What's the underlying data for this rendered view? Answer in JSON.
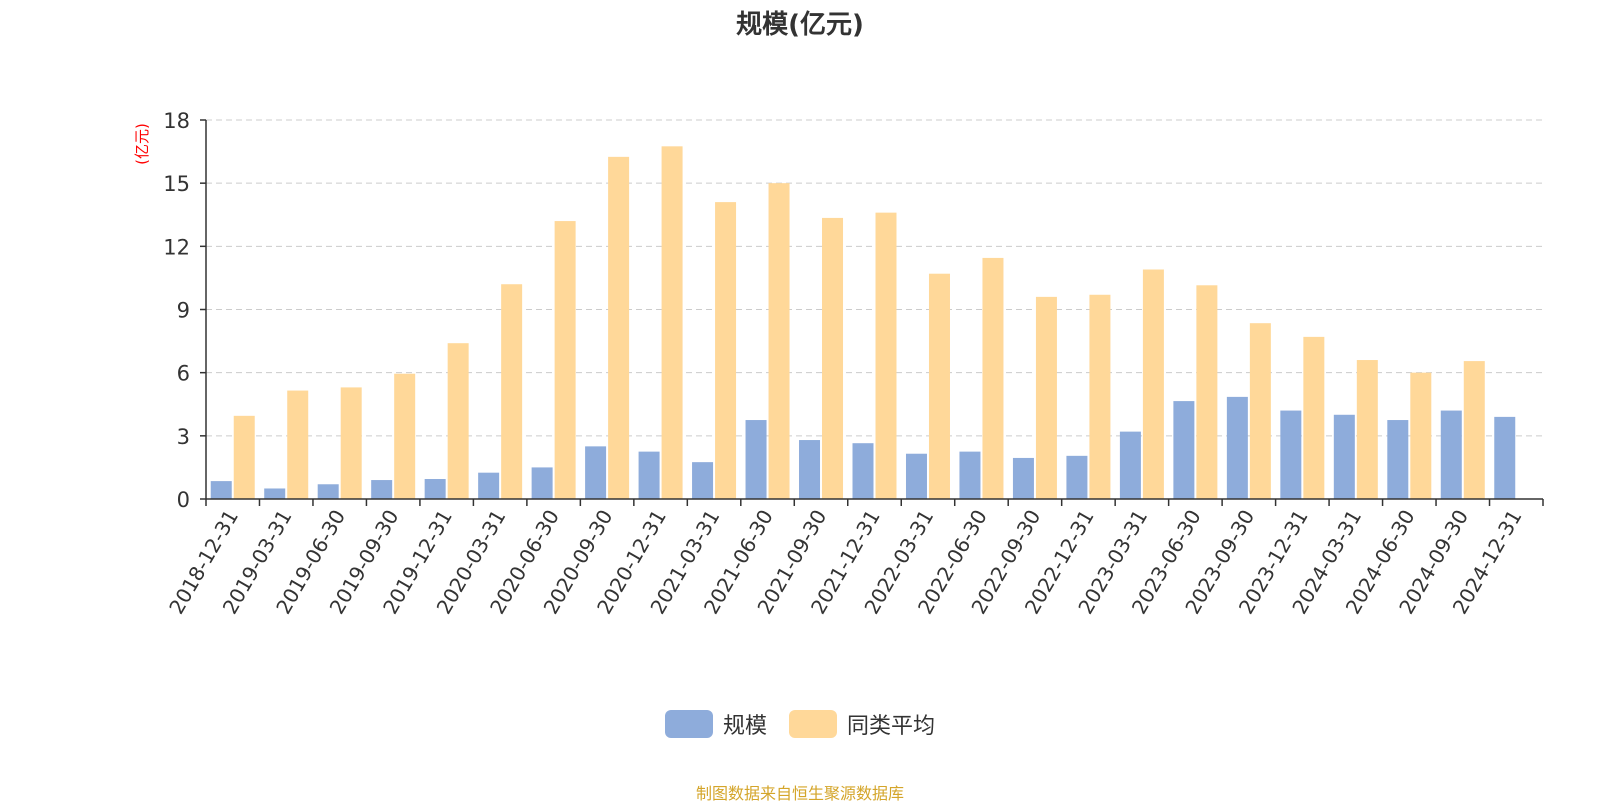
{
  "chart_data": {
    "type": "bar",
    "title": "规模(亿元)",
    "ylabel": "(亿元)",
    "xlabel": "",
    "ylim": [
      0,
      18
    ],
    "yticks": [
      "0",
      "3",
      "6",
      "9",
      "12",
      "15",
      "18"
    ],
    "grid": true,
    "legend_position": "bottom",
    "categories": [
      "2018-12-31",
      "2019-03-31",
      "2019-06-30",
      "2019-09-30",
      "2019-12-31",
      "2020-03-31",
      "2020-06-30",
      "2020-09-30",
      "2020-12-31",
      "2021-03-31",
      "2021-06-30",
      "2021-09-30",
      "2021-12-31",
      "2022-03-31",
      "2022-06-30",
      "2022-09-30",
      "2022-12-31",
      "2023-03-31",
      "2023-06-30",
      "2023-09-30",
      "2023-12-31",
      "2024-03-31",
      "2024-06-30",
      "2024-09-30",
      "2024-12-31"
    ],
    "series": [
      {
        "name": "规模",
        "color": "#8eacdb",
        "values": [
          0.85,
          0.5,
          0.7,
          0.9,
          0.95,
          1.25,
          1.5,
          2.5,
          2.25,
          1.75,
          3.75,
          2.8,
          2.65,
          2.15,
          2.25,
          1.95,
          2.05,
          3.2,
          4.65,
          4.85,
          4.2,
          4.0,
          3.75,
          4.2,
          3.9
        ]
      },
      {
        "name": "同类平均",
        "color": "#ffd899",
        "values": [
          3.95,
          5.15,
          5.3,
          5.95,
          7.4,
          10.2,
          13.2,
          16.25,
          16.75,
          14.1,
          15.0,
          13.35,
          13.6,
          10.7,
          11.45,
          9.6,
          9.7,
          10.9,
          10.15,
          8.35,
          7.7,
          6.6,
          6.0,
          6.55,
          null
        ]
      }
    ]
  },
  "source_note": "制图数据来自恒生聚源数据库",
  "colors": {
    "axis": "#333333",
    "grid": "#cccccc",
    "ylabel": "#ff0000",
    "source_note": "#d4a52a"
  }
}
